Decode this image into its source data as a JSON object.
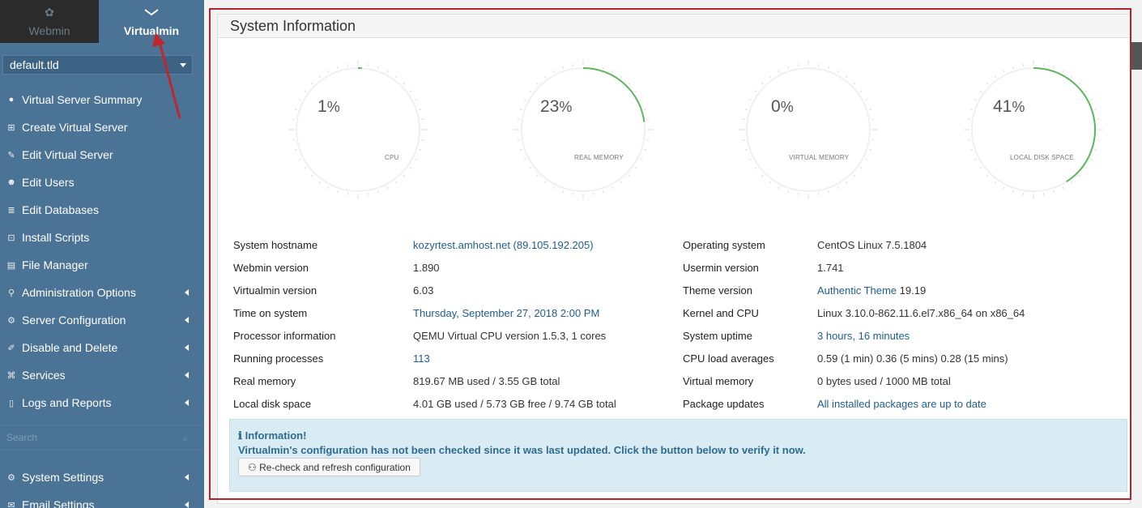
{
  "sidebar": {
    "tabs": [
      {
        "label": "Webmin",
        "icon": "webmin-logo-icon"
      },
      {
        "label": "Virtualmin",
        "icon": "chevron-down-icon"
      }
    ],
    "domain": "default.tld",
    "items": [
      {
        "label": "Virtual Server Summary",
        "icon": "info-icon",
        "submenu": false
      },
      {
        "label": "Create Virtual Server",
        "icon": "plus-square-icon",
        "submenu": false
      },
      {
        "label": "Edit Virtual Server",
        "icon": "edit-icon",
        "submenu": false
      },
      {
        "label": "Edit Users",
        "icon": "users-icon",
        "submenu": false
      },
      {
        "label": "Edit Databases",
        "icon": "database-icon",
        "submenu": false
      },
      {
        "label": "Install Scripts",
        "icon": "download-icon",
        "submenu": false
      },
      {
        "label": "File Manager",
        "icon": "folder-icon",
        "submenu": false
      },
      {
        "label": "Administration Options",
        "icon": "key-icon",
        "submenu": true
      },
      {
        "label": "Server Configuration",
        "icon": "cogs-icon",
        "submenu": true
      },
      {
        "label": "Disable and Delete",
        "icon": "brush-icon",
        "submenu": true
      },
      {
        "label": "Services",
        "icon": "sitemap-icon",
        "submenu": true
      },
      {
        "label": "Logs and Reports",
        "icon": "file-icon",
        "submenu": true
      }
    ],
    "search_placeholder": "Search",
    "bottom_items": [
      {
        "label": "System Settings",
        "icon": "gear-icon",
        "submenu": true
      },
      {
        "label": "Email Settings",
        "icon": "envelope-icon",
        "submenu": true
      }
    ]
  },
  "panel": {
    "title": "System Information",
    "gauges": [
      {
        "value": "1",
        "unit": "%",
        "label": "CPU",
        "percent": 1
      },
      {
        "value": "23",
        "unit": "%",
        "label": "REAL MEMORY",
        "percent": 23
      },
      {
        "value": "0",
        "unit": "%",
        "label": "VIRTUAL MEMORY",
        "percent": 0
      },
      {
        "value": "41",
        "unit": "%",
        "label": "LOCAL DISK SPACE",
        "percent": 41
      }
    ],
    "left_info": [
      {
        "label": "System hostname",
        "value": "kozyrtest.amhost.net (89.105.192.205)",
        "link": true
      },
      {
        "label": "Webmin version",
        "value": "1.890",
        "link": false
      },
      {
        "label": "Virtualmin version",
        "value": "6.03",
        "link": false
      },
      {
        "label": "Time on system",
        "value": "Thursday, September 27, 2018 2:00 PM",
        "link": true
      },
      {
        "label": "Processor information",
        "value": "QEMU Virtual CPU version 1.5.3, 1 cores",
        "link": false
      },
      {
        "label": "Running processes",
        "value": "113",
        "link": true
      },
      {
        "label": "Real memory",
        "value": "819.67 MB used / 3.55 GB total",
        "link": false
      },
      {
        "label": "Local disk space",
        "value": "4.01 GB used / 5.73 GB free / 9.74 GB total",
        "link": false
      }
    ],
    "right_info": [
      {
        "label": "Operating system",
        "value": "CentOS Linux 7.5.1804",
        "link": false
      },
      {
        "label": "Usermin version",
        "value": "1.741",
        "link": false
      },
      {
        "label": "Theme version",
        "value": "Authentic Theme",
        "value2": " 19.19",
        "link": true
      },
      {
        "label": "Kernel and CPU",
        "value": "Linux 3.10.0-862.11.6.el7.x86_64 on x86_64",
        "link": false
      },
      {
        "label": "System uptime",
        "value": "3 hours, 16 minutes",
        "link": true
      },
      {
        "label": "CPU load averages",
        "value": "0.59 (1 min) 0.36 (5 mins) 0.28 (15 mins)",
        "link": false
      },
      {
        "label": "Virtual memory",
        "value": "0 bytes used / 1000 MB total",
        "link": false
      },
      {
        "label": "Package updates",
        "value": "All installed packages are up to date",
        "link": true
      }
    ],
    "alert": {
      "title": "Information!",
      "text": "Virtualmin's configuration has not been checked since it was last updated. Click the button below to verify it now.",
      "button": "Re-check and refresh configuration"
    }
  },
  "colors": {
    "sidebar": "#4a7396",
    "gauge_fill": "#5cb85c",
    "annotation": "#c0272d"
  }
}
